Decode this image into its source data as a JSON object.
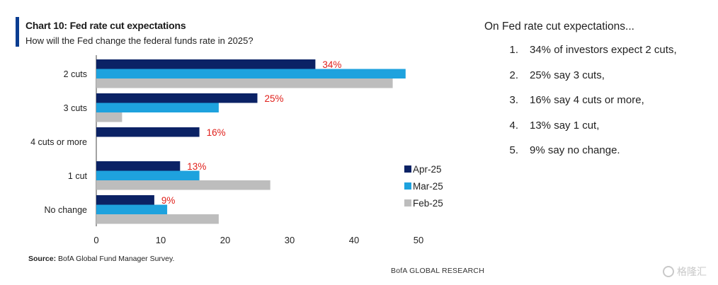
{
  "header": {
    "title": "Chart 10: Fed rate cut expectations",
    "subtitle": "How will the Fed change the federal funds rate in 2025?"
  },
  "chart_data": {
    "type": "bar",
    "orientation": "horizontal",
    "categories": [
      "2 cuts",
      "3 cuts",
      "4 cuts or more",
      "1 cut",
      "No change"
    ],
    "series": [
      {
        "name": "Apr-25",
        "color": "#0b2265",
        "values": [
          34,
          25,
          16,
          13,
          9
        ]
      },
      {
        "name": "Mar-25",
        "color": "#1ea2de",
        "values": [
          48,
          19,
          0,
          16,
          11
        ]
      },
      {
        "name": "Feb-25",
        "color": "#bdbdbd",
        "values": [
          46,
          4,
          0,
          27,
          19
        ]
      }
    ],
    "data_labels": {
      "series": "Apr-25",
      "labels": [
        "34%",
        "25%",
        "16%",
        "13%",
        "9%"
      ],
      "color": "#e0201b"
    },
    "xlim": [
      0,
      50
    ],
    "xticks": [
      "0",
      "10",
      "20",
      "30",
      "40",
      "50"
    ],
    "xlabel": "",
    "ylabel": "",
    "legend_position": "right",
    "grid": false
  },
  "footer": {
    "source_label": "Source:",
    "source_text": " BofA Global Fund Manager Survey.",
    "brand": "BofA GLOBAL RESEARCH"
  },
  "notes": {
    "heading": "On Fed rate cut expectations...",
    "items": [
      {
        "num": "1.",
        "text": "34% of investors expect 2 cuts,"
      },
      {
        "num": "2.",
        "text": "25% say 3 cuts,"
      },
      {
        "num": "3.",
        "text": "16% say 4 cuts or more,"
      },
      {
        "num": "4.",
        "text": "13% say 1 cut,"
      },
      {
        "num": "5.",
        "text": "9% say no change."
      }
    ]
  },
  "watermark": {
    "text": "格隆汇"
  }
}
